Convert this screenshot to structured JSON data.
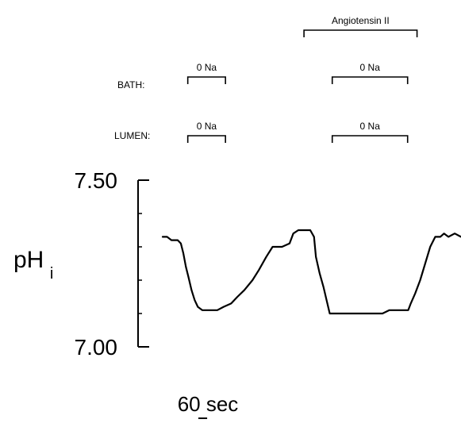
{
  "chart_data": {
    "type": "line",
    "title": "",
    "xlabel": "",
    "ylabel": {
      "main": "pH",
      "subscript": "i"
    },
    "yticks": [
      {
        "value": 7.5,
        "label": "7.50"
      },
      {
        "value": 7.0,
        "label": "7.00"
      }
    ],
    "ylim": [
      7.0,
      7.5
    ],
    "xlim": [
      0,
      475
    ],
    "x_unit": "sec",
    "scale_bar": {
      "label": "60 sec",
      "seconds": 60
    },
    "row_labels": {
      "bath": "BATH:",
      "lumen": "LUMEN:"
    },
    "brackets": [
      {
        "row": "angiotensin",
        "label": "Angiotensin II",
        "start": 225,
        "end": 405
      },
      {
        "row": "bath",
        "label": "0 Na",
        "start": 40,
        "end": 100
      },
      {
        "row": "bath",
        "label": "0 Na",
        "start": 270,
        "end": 390
      },
      {
        "row": "lumen",
        "label": "0 Na",
        "start": 40,
        "end": 100
      },
      {
        "row": "lumen",
        "label": "0 Na",
        "start": 270,
        "end": 390
      }
    ],
    "series": [
      {
        "values": [
          [
            0,
            7.33
          ],
          [
            7,
            7.33
          ],
          [
            14,
            7.32
          ],
          [
            24,
            7.32
          ],
          [
            29,
            7.31
          ],
          [
            33,
            7.28
          ],
          [
            37,
            7.24
          ],
          [
            41,
            7.21
          ],
          [
            46,
            7.17
          ],
          [
            51,
            7.14
          ],
          [
            56,
            7.12
          ],
          [
            63,
            7.11
          ],
          [
            77,
            7.11
          ],
          [
            87,
            7.11
          ],
          [
            97,
            7.12
          ],
          [
            109,
            7.13
          ],
          [
            119,
            7.15
          ],
          [
            130,
            7.17
          ],
          [
            143,
            7.2
          ],
          [
            153,
            7.23
          ],
          [
            165,
            7.27
          ],
          [
            175,
            7.3
          ],
          [
            190,
            7.3
          ],
          [
            202,
            7.31
          ],
          [
            208,
            7.34
          ],
          [
            216,
            7.35
          ],
          [
            230,
            7.35
          ],
          [
            235,
            7.35
          ],
          [
            241,
            7.33
          ],
          [
            244,
            7.27
          ],
          [
            250,
            7.22
          ],
          [
            256,
            7.18
          ],
          [
            261,
            7.14
          ],
          [
            266,
            7.1
          ],
          [
            271,
            7.1
          ],
          [
            290,
            7.1
          ],
          [
            310,
            7.1
          ],
          [
            335,
            7.1
          ],
          [
            350,
            7.1
          ],
          [
            361,
            7.11
          ],
          [
            375,
            7.11
          ],
          [
            385,
            7.11
          ],
          [
            391,
            7.11
          ],
          [
            395,
            7.13
          ],
          [
            402,
            7.16
          ],
          [
            410,
            7.2
          ],
          [
            418,
            7.25
          ],
          [
            426,
            7.3
          ],
          [
            434,
            7.33
          ],
          [
            442,
            7.33
          ],
          [
            448,
            7.34
          ],
          [
            455,
            7.33
          ],
          [
            465,
            7.34
          ],
          [
            475,
            7.33
          ]
        ]
      }
    ]
  }
}
